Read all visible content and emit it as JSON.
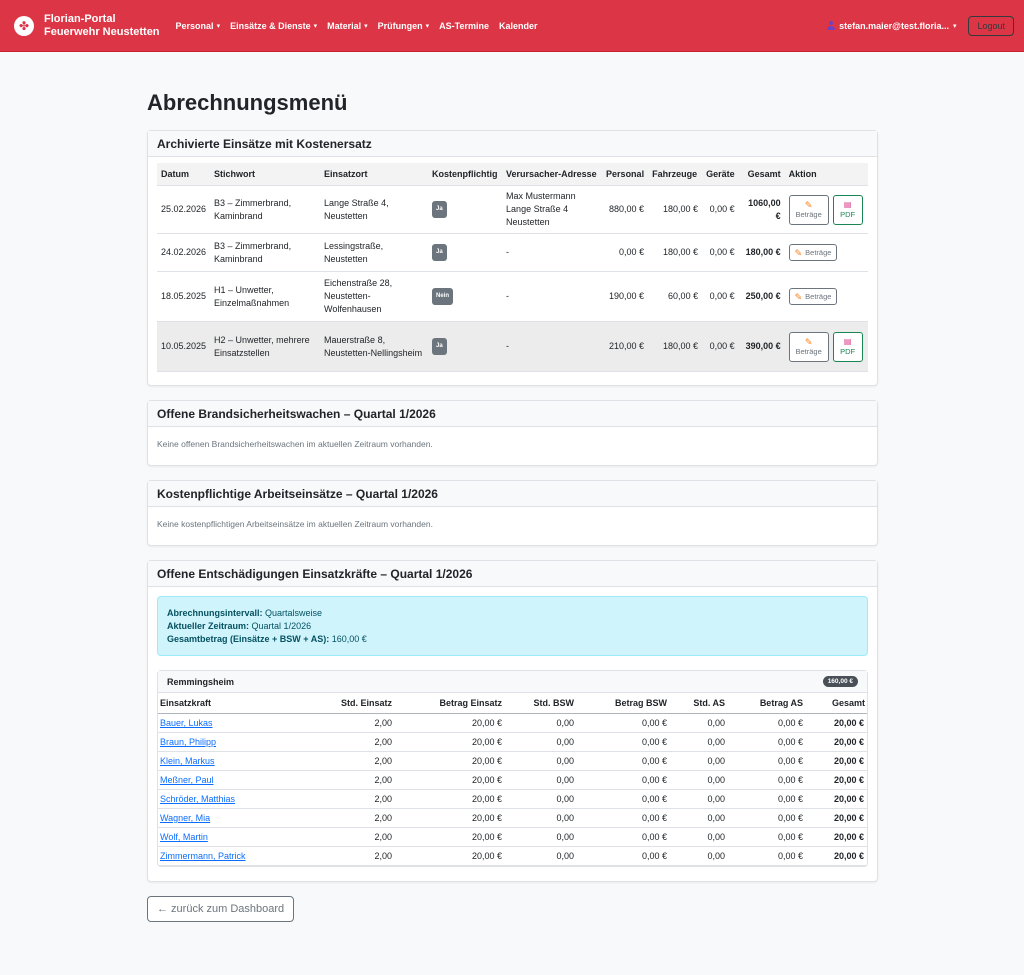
{
  "navbar": {
    "brand_line1": "Florian-Portal",
    "brand_line2": "Feuerwehr Neustetten",
    "menu": [
      {
        "label": "Personal",
        "dropdown": true
      },
      {
        "label": "Einsätze & Dienste",
        "dropdown": true
      },
      {
        "label": "Material",
        "dropdown": true
      },
      {
        "label": "Prüfungen",
        "dropdown": true
      },
      {
        "label": "AS-Termine",
        "dropdown": false
      },
      {
        "label": "Kalender",
        "dropdown": false
      }
    ],
    "user": "stefan.maier@test.floria...",
    "logout": "Logout",
    "color": "#dc3545"
  },
  "page_title": "Abrechnungsmenü",
  "archived": {
    "title": "Archivierte Einsätze mit Kostenersatz",
    "columns": [
      "Datum",
      "Stichwort",
      "Einsatzort",
      "Kostenpflichtig",
      "Verursacher-Adresse",
      "Personal",
      "Fahrzeuge",
      "Geräte",
      "Gesamt",
      "Aktion"
    ],
    "rows": [
      {
        "datum": "25.02.2026",
        "stichwort": "B3 – Zimmerbrand, Kaminbrand",
        "ort": "Lange Straße 4, Neustetten",
        "kosten": "Ja",
        "adresse": "Max Mustermann Lange Straße 4 Neustetten",
        "personal": "880,00 €",
        "fahrzeuge": "180,00 €",
        "geraete": "0,00 €",
        "gesamt": "1060,00 €",
        "betraege": "Beträge",
        "pdf": "PDF"
      },
      {
        "datum": "24.02.2026",
        "stichwort": "B3 – Zimmerbrand, Kaminbrand",
        "ort": "Lessingstraße, Neustetten",
        "kosten": "Ja",
        "adresse": "-",
        "personal": "0,00 €",
        "fahrzeuge": "180,00 €",
        "geraete": "0,00 €",
        "gesamt": "180,00 €",
        "betraege": "Beträge",
        "pdf": ""
      },
      {
        "datum": "18.05.2025",
        "stichwort": "H1 – Unwetter, Einzelmaßnahmen",
        "ort": "Eichenstraße 28, Neustetten-Wolfenhausen",
        "kosten": "Nein",
        "adresse": "-",
        "personal": "190,00 €",
        "fahrzeuge": "60,00 €",
        "geraete": "0,00 €",
        "gesamt": "250,00 €",
        "betraege": "Beträge",
        "pdf": ""
      },
      {
        "datum": "10.05.2025",
        "stichwort": "H2 – Unwetter, mehrere Einsatzstellen",
        "ort": "Mauerstraße 8, Neustetten-Nellingsheim",
        "kosten": "Ja",
        "adresse": "-",
        "personal": "210,00 €",
        "fahrzeuge": "180,00 €",
        "geraete": "0,00 €",
        "gesamt": "390,00 €",
        "betraege": "Beträge",
        "pdf": "PDF"
      }
    ]
  },
  "bsw": {
    "title": "Offene Brandsicherheitswachen – Quartal 1/2026",
    "text": "Keine offenen Brandsicherheitswachen im aktuellen Zeitraum vorhanden."
  },
  "arbeit": {
    "title": "Kostenpflichtige Arbeitseinsätze – Quartal 1/2026",
    "text": "Keine kostenpflichtigen Arbeitseinsätze im aktuellen Zeitraum vorhanden."
  },
  "entsch": {
    "title": "Offene Entschädigungen Einsatzkräfte – Quartal 1/2026",
    "alert": {
      "l1_label": "Abrechnungsintervall:",
      "l1_value": "Quartalsweise",
      "l2_label": "Aktueller Zeitraum:",
      "l2_value": "Quartal 1/2026",
      "l3_label": "Gesamtbetrag (Einsätze + BSW + AS):",
      "l3_value": "160,00 €"
    },
    "group": "Remmingsheim",
    "group_total": "160,00 €",
    "columns": [
      "Einsatzkraft",
      "Std. Einsatz",
      "Betrag Einsatz",
      "Std. BSW",
      "Betrag BSW",
      "Std. AS",
      "Betrag AS",
      "Gesamt"
    ],
    "rows": [
      [
        "Bauer, Lukas",
        "2,00",
        "20,00 €",
        "0,00",
        "0,00 €",
        "0,00",
        "0,00 €",
        "20,00 €"
      ],
      [
        "Braun, Philipp",
        "2,00",
        "20,00 €",
        "0,00",
        "0,00 €",
        "0,00",
        "0,00 €",
        "20,00 €"
      ],
      [
        "Klein, Markus",
        "2,00",
        "20,00 €",
        "0,00",
        "0,00 €",
        "0,00",
        "0,00 €",
        "20,00 €"
      ],
      [
        "Meßner, Paul",
        "2,00",
        "20,00 €",
        "0,00",
        "0,00 €",
        "0,00",
        "0,00 €",
        "20,00 €"
      ],
      [
        "Schröder, Matthias",
        "2,00",
        "20,00 €",
        "0,00",
        "0,00 €",
        "0,00",
        "0,00 €",
        "20,00 €"
      ],
      [
        "Wagner, Mia",
        "2,00",
        "20,00 €",
        "0,00",
        "0,00 €",
        "0,00",
        "0,00 €",
        "20,00 €"
      ],
      [
        "Wolf, Martin",
        "2,00",
        "20,00 €",
        "0,00",
        "0,00 €",
        "0,00",
        "0,00 €",
        "20,00 €"
      ],
      [
        "Zimmermann, Patrick",
        "2,00",
        "20,00 €",
        "0,00",
        "0,00 €",
        "0,00",
        "0,00 €",
        "20,00 €"
      ]
    ]
  },
  "back_button": "← zurück zum Dashboard"
}
